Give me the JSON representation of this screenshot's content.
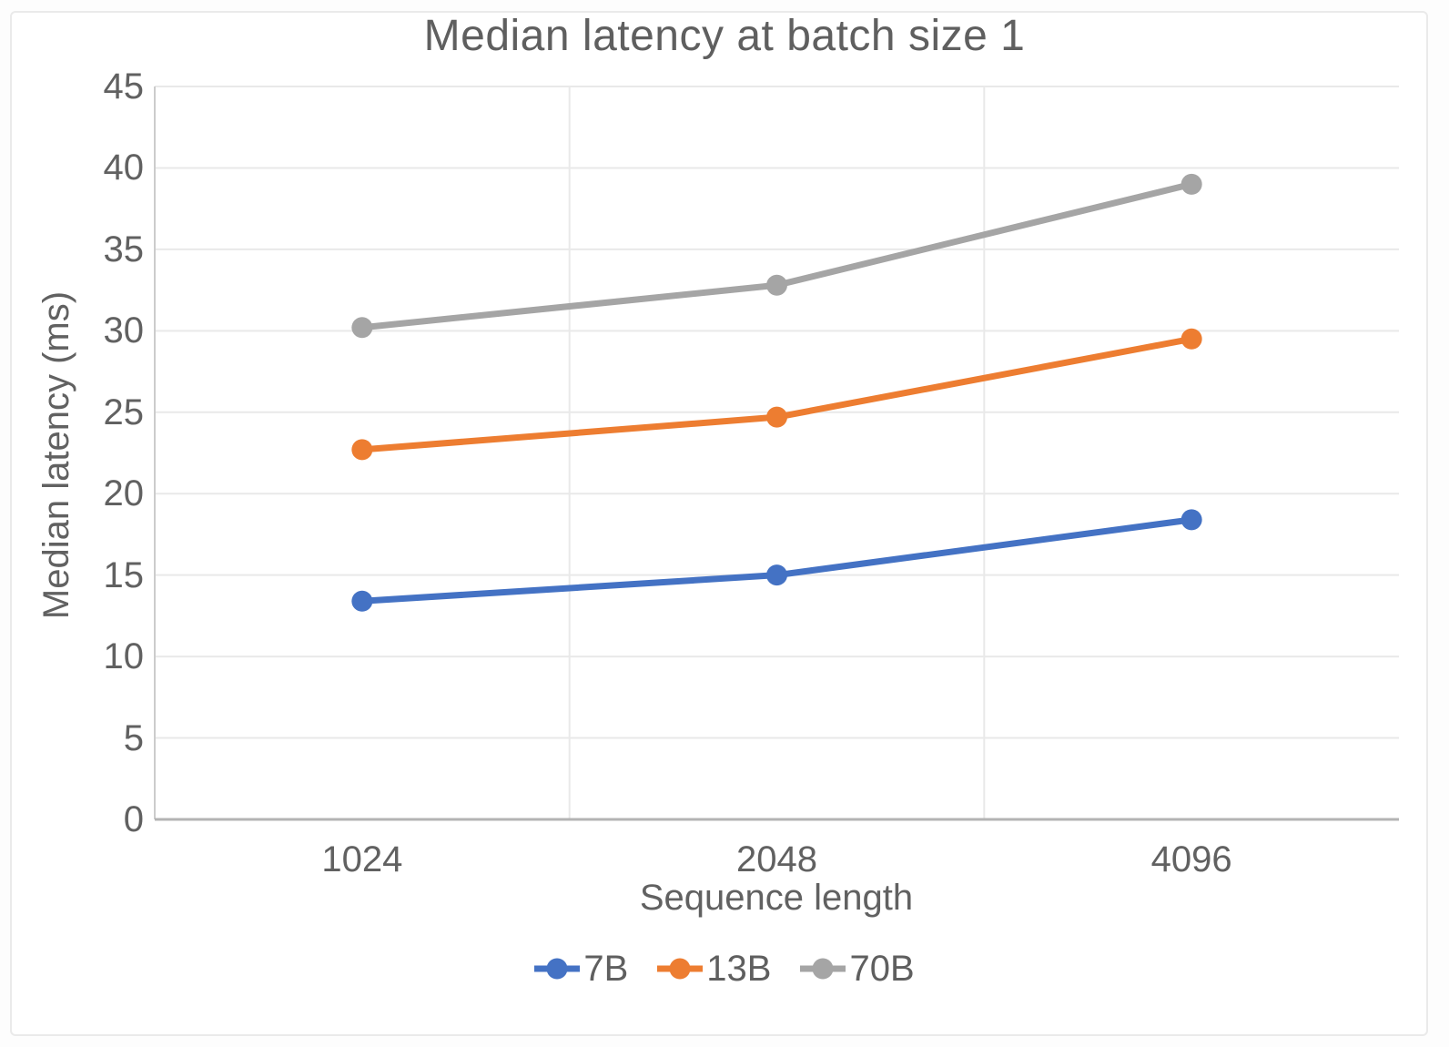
{
  "chart_data": {
    "type": "line",
    "title": "Median latency at batch size 1",
    "xlabel": "Sequence length",
    "ylabel": "Median latency (ms)",
    "categories": [
      "1024",
      "2048",
      "4096"
    ],
    "series": [
      {
        "name": "7B",
        "color": "#4472C4",
        "values": [
          13.4,
          15.0,
          18.4
        ]
      },
      {
        "name": "13B",
        "color": "#ED7D31",
        "values": [
          22.7,
          24.7,
          29.5
        ]
      },
      {
        "name": "70B",
        "color": "#A5A5A5",
        "values": [
          30.2,
          32.8,
          39.0
        ]
      }
    ],
    "ylim": [
      0,
      45
    ],
    "ytick_step": 5,
    "yticks": [
      0,
      5,
      10,
      15,
      20,
      25,
      30,
      35,
      40,
      45
    ],
    "grid": true,
    "legend_position": "bottom"
  },
  "style": {
    "grid_color": "#e9e9e9",
    "x_axis_color": "#b3b3b3",
    "y_axis_color": "#cccccc",
    "text_color": "#616161",
    "title_color": "#5f5f5f",
    "card_border_color": "#eaeaea",
    "card_background": "#ffffff",
    "page_background": "#fdfdfd"
  }
}
